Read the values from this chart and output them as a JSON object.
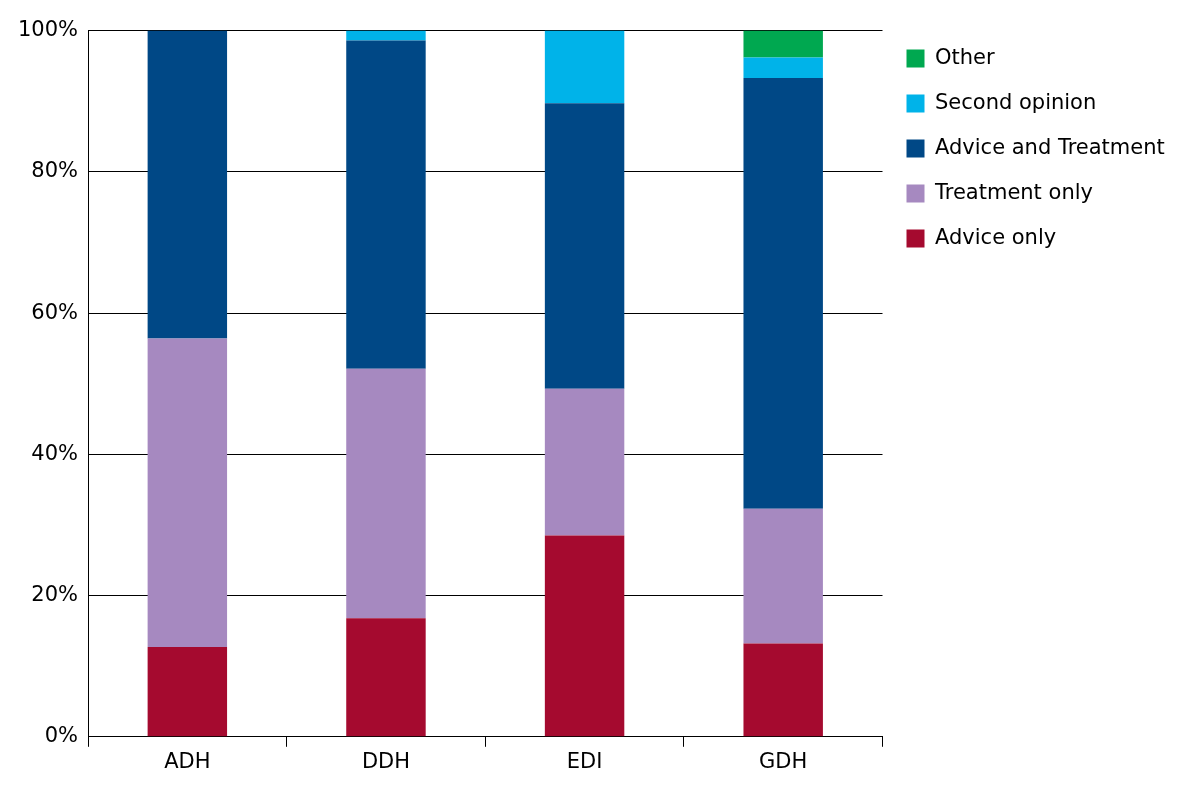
{
  "chart_data": {
    "type": "bar",
    "stacked": true,
    "categories": [
      "ADH",
      "DDH",
      "EDI",
      "GDH"
    ],
    "series": [
      {
        "name": "Advice only",
        "color": "#a50a2f",
        "values": [
          12.7,
          16.8,
          28.5,
          13.2
        ]
      },
      {
        "name": "Treatment only",
        "color": "#a689c0",
        "values": [
          43.7,
          35.3,
          20.8,
          19.1
        ]
      },
      {
        "name": "Advice and Treatment",
        "color": "#004886",
        "values": [
          43.6,
          46.5,
          40.4,
          61.0
        ]
      },
      {
        "name": "Second opinion",
        "color": "#00b3e9",
        "values": [
          0,
          1.4,
          10.3,
          2.9
        ]
      },
      {
        "name": "Other",
        "color": "#00a850",
        "values": [
          0,
          0,
          0,
          3.8
        ]
      }
    ],
    "ylim": [
      0,
      100
    ],
    "yticks": [
      {
        "value": 0,
        "label": "0%"
      },
      {
        "value": 20,
        "label": "20%"
      },
      {
        "value": 40,
        "label": "40%"
      },
      {
        "value": 60,
        "label": "60%"
      },
      {
        "value": 80,
        "label": "80%"
      },
      {
        "value": 100,
        "label": "100%"
      }
    ],
    "grid": "y",
    "legend": "top right"
  }
}
